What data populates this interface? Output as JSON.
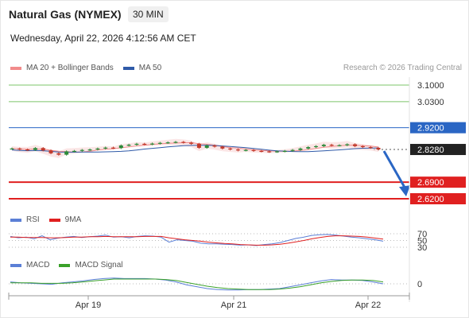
{
  "header": {
    "title": "Natural Gas (NYMEX)",
    "timeframe": "30 MIN",
    "datetime": "Wednesday, April 22, 2026 4:12:56 AM CET",
    "credit": "Research © 2026 Trading Central"
  },
  "legends": {
    "main": [
      {
        "label": "MA 20 + Bollinger Bands",
        "color": "#f28b8b"
      },
      {
        "label": "MA 50",
        "color": "#2f5aa8"
      }
    ],
    "rsi": [
      {
        "label": "RSI",
        "color": "#5b7fd6"
      },
      {
        "label": "9MA",
        "color": "#e02020"
      }
    ],
    "macd": [
      {
        "label": "MACD",
        "color": "#5b7fd6"
      },
      {
        "label": "MACD Signal",
        "color": "#3aa12a"
      }
    ]
  },
  "colors": {
    "resistance": "#7cc46a",
    "pivot": "#2a66c4",
    "support": "#e02020",
    "last_price_badge": "#222222",
    "up_candle": "#2c8a3a",
    "down_candle": "#c0392b",
    "projection_arrow": "#2a66c4"
  },
  "chart_data": [
    {
      "type": "candlestick",
      "title": "Natural Gas (NYMEX)",
      "timeframe": "30 MIN",
      "x_tick_labels": [
        "Apr 19",
        "Apr 21",
        "Apr 22"
      ],
      "ylim": [
        2.6,
        3.12
      ],
      "last_price": 2.828,
      "levels": [
        {
          "value": 3.1,
          "label": "3.1000",
          "kind": "resistance"
        },
        {
          "value": 3.03,
          "label": "3.0300",
          "kind": "resistance"
        },
        {
          "value": 2.92,
          "label": "2.9200",
          "kind": "pivot"
        },
        {
          "value": 2.828,
          "label": "2.8280",
          "kind": "last"
        },
        {
          "value": 2.69,
          "label": "2.6900",
          "kind": "support"
        },
        {
          "value": 2.62,
          "label": "2.6200",
          "kind": "support"
        }
      ],
      "close_series": [
        2.832,
        2.828,
        2.826,
        2.834,
        2.824,
        2.812,
        2.806,
        2.82,
        2.822,
        2.826,
        2.828,
        2.832,
        2.836,
        2.834,
        2.845,
        2.848,
        2.852,
        2.85,
        2.853,
        2.856,
        2.858,
        2.86,
        2.857,
        2.852,
        2.835,
        2.845,
        2.84,
        2.832,
        2.828,
        2.824,
        2.826,
        2.822,
        2.82,
        2.818,
        2.82,
        2.822,
        2.826,
        2.832,
        2.838,
        2.842,
        2.848,
        2.845,
        2.846,
        2.85,
        2.842,
        2.838,
        2.835,
        2.828
      ],
      "projection": {
        "from": 2.828,
        "to": 2.69
      }
    },
    {
      "type": "line",
      "title": "RSI",
      "series": [
        {
          "name": "RSI",
          "values": [
            62,
            58,
            60,
            55,
            64,
            52,
            57,
            60,
            62,
            59,
            61,
            63,
            66,
            60,
            61,
            58,
            62,
            64,
            63,
            60,
            45,
            52,
            50,
            48,
            42,
            40,
            40,
            39,
            38,
            36,
            37,
            35,
            38,
            40,
            44,
            50,
            56,
            60,
            65,
            67,
            68,
            66,
            63,
            60,
            58,
            55,
            52,
            48
          ]
        },
        {
          "name": "9MA",
          "values": [
            60,
            60,
            59,
            59,
            59,
            58,
            58,
            59,
            60,
            60,
            61,
            61,
            62,
            61,
            61,
            61,
            61,
            62,
            62,
            62,
            58,
            55,
            52,
            50,
            48,
            45,
            43,
            41,
            40,
            38,
            37,
            36,
            36,
            37,
            39,
            42,
            46,
            50,
            55,
            59,
            62,
            64,
            64,
            63,
            62,
            60,
            57,
            54
          ]
        }
      ],
      "reference_levels": [
        70,
        50,
        30
      ]
    },
    {
      "type": "line",
      "title": "MACD",
      "series": [
        {
          "name": "MACD",
          "values": [
            0.004,
            0.002,
            0.001,
            0.0,
            -0.001,
            0.002,
            0.004,
            0.006,
            0.009,
            0.011,
            0.012,
            0.011,
            0.011,
            0.011,
            0.01,
            0.008,
            0.004,
            -0.002,
            -0.006,
            -0.01,
            -0.012,
            -0.013,
            -0.013,
            -0.012,
            -0.012,
            -0.011,
            -0.01,
            -0.006,
            -0.002,
            0.002,
            0.006,
            0.009,
            0.008,
            0.008,
            0.007,
            0.004,
            0.0
          ]
        },
        {
          "name": "MACD Signal",
          "values": [
            0.002,
            0.002,
            0.002,
            0.001,
            0.001,
            0.001,
            0.002,
            0.004,
            0.006,
            0.008,
            0.01,
            0.01,
            0.01,
            0.01,
            0.01,
            0.009,
            0.007,
            0.003,
            -0.001,
            -0.005,
            -0.008,
            -0.01,
            -0.011,
            -0.012,
            -0.012,
            -0.012,
            -0.011,
            -0.009,
            -0.006,
            -0.002,
            0.002,
            0.005,
            0.007,
            0.008,
            0.008,
            0.007,
            0.004
          ]
        }
      ],
      "reference_levels": [
        0
      ]
    }
  ]
}
